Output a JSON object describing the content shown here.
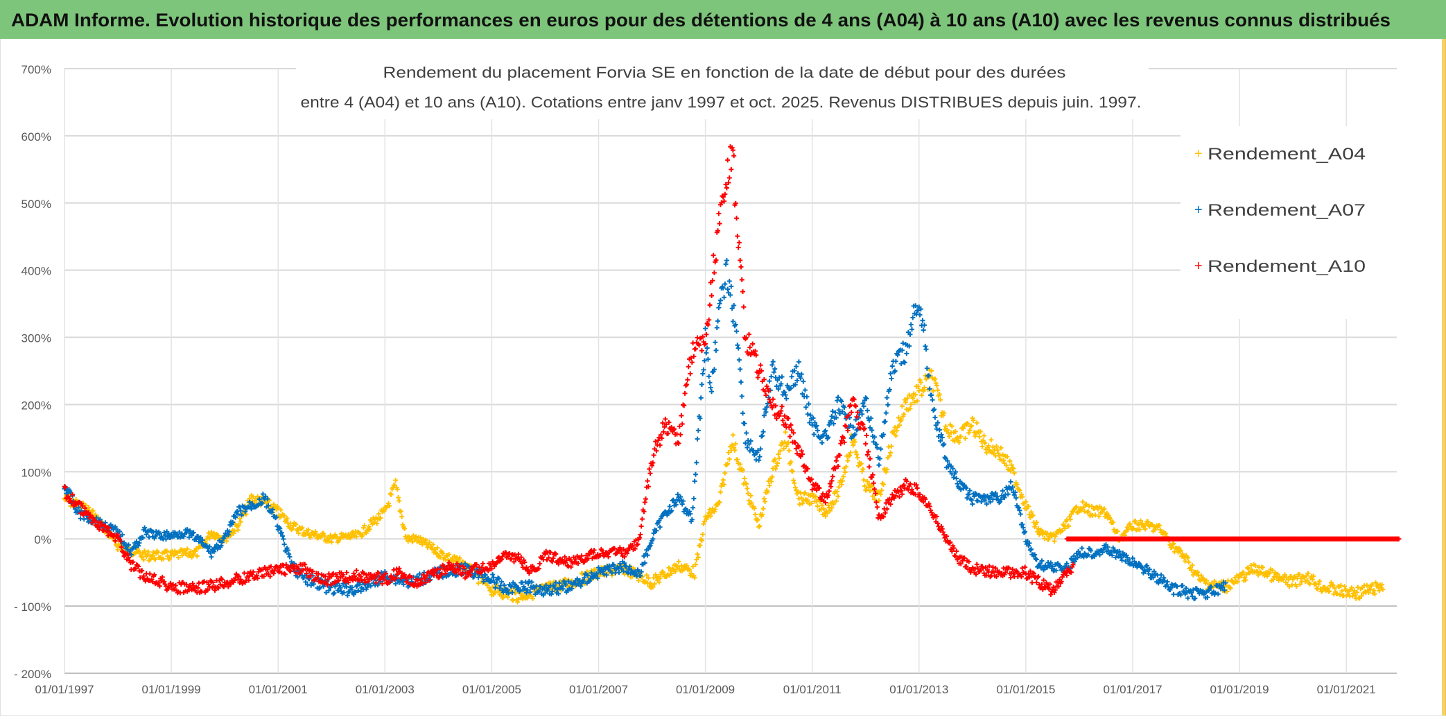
{
  "header": {
    "title": "ADAM Informe. Evolution historique des performances en euros pour des détentions de 4 ans (A04) à 10 ans (A10) avec les revenus connus distribués"
  },
  "colors": {
    "header_bg": "#7dc57a",
    "A04": "#ffc000",
    "A07": "#0070c0",
    "A10": "#ff0000",
    "grid": "#d9d9d9"
  },
  "chart_data": {
    "type": "scatter",
    "title_lines": [
      "Rendement du placement Forvia SE en fonction de la date de début pour des durées",
      "entre 4 (A04) et 10 ans (A10). Cotations entre janv 1997 et oct. 2025. Revenus DISTRIBUES depuis juin. 1997."
    ],
    "xlabel": "",
    "ylabel": "",
    "x_unit": "year",
    "xlim": [
      1997,
      2022
    ],
    "ylim": [
      -200,
      700
    ],
    "y_ticks": [
      700,
      600,
      500,
      400,
      300,
      200,
      100,
      0,
      -100,
      -200
    ],
    "y_tick_labels": [
      "700%",
      "600%",
      "500%",
      "400%",
      "300%",
      "200%",
      "100%",
      "0%",
      "- 100%",
      "- 200%"
    ],
    "x_tick_labels": [
      "01/01/1997",
      "01/01/1999",
      "01/01/2001",
      "01/01/2003",
      "01/01/2005",
      "01/01/2007",
      "01/01/2009",
      "01/01/2011",
      "01/01/2013",
      "01/01/2015",
      "01/01/2017",
      "01/01/2019",
      "01/01/2021"
    ],
    "grid": true,
    "legend_position": "right",
    "marker": "plus",
    "series": [
      {
        "name": "Rendement_A04",
        "color": "#ffc000",
        "points": [
          [
            1997.0,
            60
          ],
          [
            1997.5,
            40
          ],
          [
            1998.0,
            -10
          ],
          [
            1998.5,
            -25
          ],
          [
            1999.0,
            -25
          ],
          [
            1999.5,
            -20
          ],
          [
            1999.75,
            10
          ],
          [
            2000.0,
            0
          ],
          [
            2000.25,
            20
          ],
          [
            2000.5,
            60
          ],
          [
            2000.75,
            55
          ],
          [
            2001.0,
            40
          ],
          [
            2001.25,
            20
          ],
          [
            2001.5,
            10
          ],
          [
            2001.75,
            5
          ],
          [
            2002.0,
            0
          ],
          [
            2002.5,
            5
          ],
          [
            2003.0,
            40
          ],
          [
            2003.2,
            80
          ],
          [
            2003.4,
            0
          ],
          [
            2003.6,
            0
          ],
          [
            2004.0,
            -20
          ],
          [
            2004.5,
            -40
          ],
          [
            2005.0,
            -75
          ],
          [
            2005.5,
            -85
          ],
          [
            2006.0,
            -75
          ],
          [
            2006.5,
            -65
          ],
          [
            2007.0,
            -50
          ],
          [
            2007.5,
            -45
          ],
          [
            2008.0,
            -65
          ],
          [
            2008.5,
            -40
          ],
          [
            2008.8,
            -50
          ],
          [
            2009.0,
            30
          ],
          [
            2009.25,
            50
          ],
          [
            2009.5,
            150
          ],
          [
            2009.75,
            80
          ],
          [
            2010.0,
            20
          ],
          [
            2010.25,
            100
          ],
          [
            2010.5,
            150
          ],
          [
            2010.75,
            60
          ],
          [
            2011.0,
            60
          ],
          [
            2011.25,
            40
          ],
          [
            2011.5,
            70
          ],
          [
            2011.75,
            150
          ],
          [
            2012.0,
            80
          ],
          [
            2012.25,
            60
          ],
          [
            2012.5,
            150
          ],
          [
            2012.75,
            200
          ],
          [
            2013.0,
            220
          ],
          [
            2013.25,
            240
          ],
          [
            2013.5,
            170
          ],
          [
            2013.75,
            150
          ],
          [
            2014.0,
            170
          ],
          [
            2014.25,
            140
          ],
          [
            2014.5,
            130
          ],
          [
            2014.75,
            100
          ],
          [
            2015.0,
            50
          ],
          [
            2015.25,
            10
          ],
          [
            2015.5,
            0
          ],
          [
            2015.75,
            20
          ],
          [
            2016.0,
            50
          ],
          [
            2016.25,
            40
          ],
          [
            2016.5,
            40
          ],
          [
            2016.75,
            0
          ],
          [
            2017.0,
            20
          ],
          [
            2017.25,
            20
          ],
          [
            2017.5,
            15
          ],
          [
            2017.75,
            -10
          ],
          [
            2018.0,
            -30
          ],
          [
            2018.25,
            -60
          ],
          [
            2018.5,
            -70
          ],
          [
            2018.75,
            -70
          ],
          [
            2019.0,
            -60
          ],
          [
            2019.25,
            -45
          ],
          [
            2019.5,
            -50
          ],
          [
            2019.75,
            -60
          ],
          [
            2020.0,
            -65
          ],
          [
            2020.25,
            -55
          ],
          [
            2020.5,
            -70
          ],
          [
            2020.75,
            -75
          ],
          [
            2021.0,
            -80
          ],
          [
            2021.25,
            -80
          ],
          [
            2021.5,
            -75
          ],
          [
            2021.7,
            -70
          ]
        ]
      },
      {
        "name": "Rendement_A07",
        "color": "#0070c0",
        "points": [
          [
            1997.0,
            80
          ],
          [
            1997.25,
            40
          ],
          [
            1997.5,
            30
          ],
          [
            1998.0,
            10
          ],
          [
            1998.25,
            -20
          ],
          [
            1998.5,
            10
          ],
          [
            1998.75,
            5
          ],
          [
            1999.0,
            5
          ],
          [
            1999.25,
            10
          ],
          [
            1999.5,
            0
          ],
          [
            1999.75,
            -20
          ],
          [
            2000.0,
            0
          ],
          [
            2000.25,
            40
          ],
          [
            2000.5,
            50
          ],
          [
            2000.75,
            60
          ],
          [
            2001.0,
            20
          ],
          [
            2001.25,
            -40
          ],
          [
            2001.5,
            -60
          ],
          [
            2001.75,
            -65
          ],
          [
            2002.0,
            -75
          ],
          [
            2002.5,
            -75
          ],
          [
            2002.75,
            -65
          ],
          [
            2003.0,
            -55
          ],
          [
            2003.25,
            -60
          ],
          [
            2003.5,
            -65
          ],
          [
            2004.0,
            -50
          ],
          [
            2004.5,
            -45
          ],
          [
            2005.0,
            -60
          ],
          [
            2005.25,
            -75
          ],
          [
            2005.5,
            -70
          ],
          [
            2006.0,
            -75
          ],
          [
            2006.5,
            -70
          ],
          [
            2006.75,
            -60
          ],
          [
            2007.0,
            -50
          ],
          [
            2007.5,
            -40
          ],
          [
            2007.75,
            -55
          ],
          [
            2008.0,
            0
          ],
          [
            2008.25,
            40
          ],
          [
            2008.5,
            60
          ],
          [
            2008.75,
            30
          ],
          [
            2009.0,
            300
          ],
          [
            2009.1,
            220
          ],
          [
            2009.25,
            330
          ],
          [
            2009.4,
            400
          ],
          [
            2009.6,
            300
          ],
          [
            2009.75,
            150
          ],
          [
            2010.0,
            120
          ],
          [
            2010.25,
            250
          ],
          [
            2010.5,
            220
          ],
          [
            2010.75,
            250
          ],
          [
            2011.0,
            170
          ],
          [
            2011.25,
            150
          ],
          [
            2011.5,
            200
          ],
          [
            2011.75,
            160
          ],
          [
            2012.0,
            200
          ],
          [
            2012.25,
            120
          ],
          [
            2012.5,
            250
          ],
          [
            2012.75,
            280
          ],
          [
            2013.0,
            360
          ],
          [
            2013.1,
            300
          ],
          [
            2013.25,
            200
          ],
          [
            2013.5,
            120
          ],
          [
            2013.75,
            80
          ],
          [
            2014.0,
            60
          ],
          [
            2014.5,
            60
          ],
          [
            2014.75,
            80
          ],
          [
            2015.0,
            0
          ],
          [
            2015.25,
            -40
          ],
          [
            2015.5,
            -40
          ],
          [
            2015.75,
            -45
          ],
          [
            2016.0,
            -20
          ],
          [
            2016.25,
            -20
          ],
          [
            2016.5,
            -15
          ],
          [
            2016.75,
            -25
          ],
          [
            2017.0,
            -35
          ],
          [
            2017.25,
            -45
          ],
          [
            2017.5,
            -60
          ],
          [
            2017.75,
            -75
          ],
          [
            2018.0,
            -80
          ],
          [
            2018.25,
            -80
          ],
          [
            2018.5,
            -80
          ],
          [
            2018.75,
            -70
          ]
        ]
      },
      {
        "name": "Rendement_A10",
        "color": "#ff0000",
        "points": [
          [
            1997.0,
            70
          ],
          [
            1997.25,
            50
          ],
          [
            1997.5,
            30
          ],
          [
            1998.0,
            0
          ],
          [
            1998.25,
            -40
          ],
          [
            1998.5,
            -55
          ],
          [
            1998.75,
            -60
          ],
          [
            1999.0,
            -72
          ],
          [
            1999.5,
            -75
          ],
          [
            2000.0,
            -65
          ],
          [
            2000.5,
            -55
          ],
          [
            2001.0,
            -45
          ],
          [
            2001.5,
            -45
          ],
          [
            2001.75,
            -60
          ],
          [
            2002.0,
            -60
          ],
          [
            2002.5,
            -55
          ],
          [
            2003.0,
            -60
          ],
          [
            2003.25,
            -50
          ],
          [
            2003.5,
            -65
          ],
          [
            2004.0,
            -50
          ],
          [
            2004.25,
            -40
          ],
          [
            2004.5,
            -50
          ],
          [
            2005.0,
            -40
          ],
          [
            2005.25,
            -25
          ],
          [
            2005.5,
            -30
          ],
          [
            2005.75,
            -50
          ],
          [
            2006.0,
            -25
          ],
          [
            2006.5,
            -35
          ],
          [
            2007.0,
            -20
          ],
          [
            2007.5,
            -20
          ],
          [
            2007.75,
            -5
          ],
          [
            2008.0,
            120
          ],
          [
            2008.25,
            170
          ],
          [
            2008.5,
            150
          ],
          [
            2008.75,
            280
          ],
          [
            2009.0,
            300
          ],
          [
            2009.25,
            470
          ],
          [
            2009.5,
            580
          ],
          [
            2009.75,
            300
          ],
          [
            2010.0,
            250
          ],
          [
            2010.25,
            200
          ],
          [
            2010.5,
            180
          ],
          [
            2010.75,
            130
          ],
          [
            2011.0,
            80
          ],
          [
            2011.25,
            60
          ],
          [
            2011.5,
            120
          ],
          [
            2011.75,
            200
          ],
          [
            2012.0,
            150
          ],
          [
            2012.25,
            30
          ],
          [
            2012.5,
            60
          ],
          [
            2012.75,
            80
          ],
          [
            2013.0,
            70
          ],
          [
            2013.25,
            40
          ],
          [
            2013.5,
            0
          ],
          [
            2013.75,
            -30
          ],
          [
            2014.0,
            -45
          ],
          [
            2014.5,
            -50
          ],
          [
            2015.0,
            -50
          ],
          [
            2015.25,
            -65
          ],
          [
            2015.5,
            -75
          ],
          [
            2015.75,
            -55
          ],
          [
            2015.9,
            -40
          ]
        ]
      },
      {
        "name": "",
        "color": "#ff0000",
        "points": [
          [
            2015.77,
            0
          ],
          [
            2022.0,
            0
          ]
        ]
      }
    ]
  }
}
